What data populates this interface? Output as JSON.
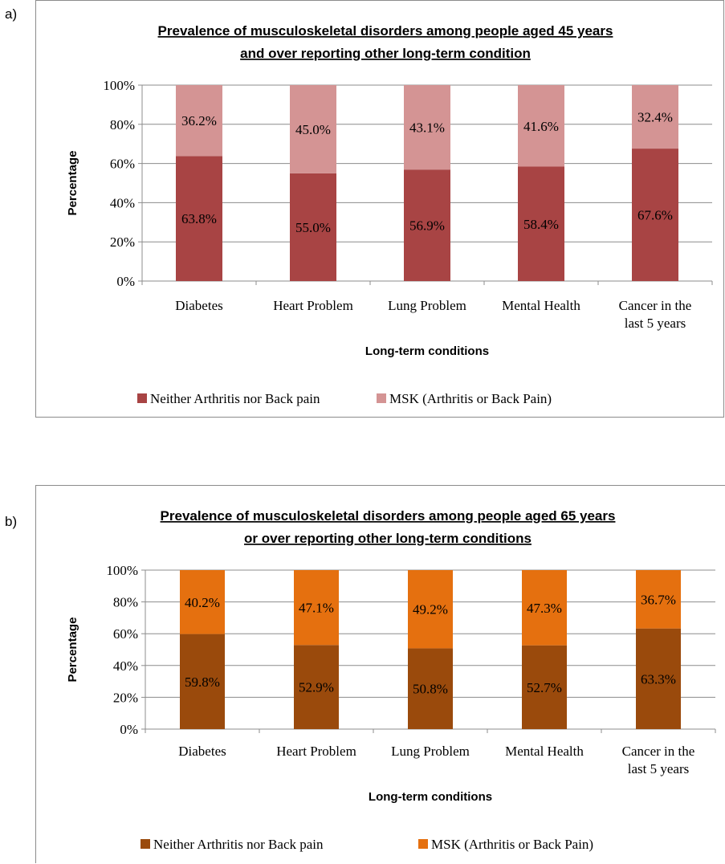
{
  "panel_labels": [
    "a)",
    "b)"
  ],
  "chart_data": [
    {
      "type": "bar",
      "stacked": true,
      "title_line1": "Prevalence of musculoskeletal disorders among people aged 45 years",
      "title_line2": "and over reporting other long-term condition",
      "xlabel": "Long-term conditions",
      "ylabel": "Percentage",
      "ylim": [
        0,
        100
      ],
      "yticks": [
        "0%",
        "20%",
        "40%",
        "60%",
        "80%",
        "100%"
      ],
      "categories": [
        [
          "Diabetes"
        ],
        [
          "Heart Problem"
        ],
        [
          "Lung Problem"
        ],
        [
          "Mental Health"
        ],
        [
          "Cancer in the",
          "last 5 years"
        ]
      ],
      "grid": true,
      "legend_position": "bottom",
      "series": [
        {
          "name": "Neither Arthritis nor Back pain",
          "color": "#a84444",
          "values": [
            63.8,
            55.0,
            56.9,
            58.4,
            67.6
          ],
          "labels": [
            "63.8%",
            "55.0%",
            "56.9%",
            "58.4%",
            "67.6%"
          ]
        },
        {
          "name": "MSK (Arthritis or Back Pain)",
          "color": "#d49494",
          "values": [
            36.2,
            45.0,
            43.1,
            41.6,
            32.4
          ],
          "labels": [
            "36.2%",
            "45.0%",
            "43.1%",
            "41.6%",
            "32.4%"
          ]
        }
      ]
    },
    {
      "type": "bar",
      "stacked": true,
      "title_line1": "Prevalence of musculoskeletal disorders among people aged 65 years",
      "title_line2": "or over reporting other long-term conditions",
      "xlabel": "Long-term conditions",
      "ylabel": "Percentage",
      "ylim": [
        0,
        100
      ],
      "yticks": [
        "0%",
        "20%",
        "40%",
        "60%",
        "80%",
        "100%"
      ],
      "categories": [
        [
          "Diabetes"
        ],
        [
          "Heart Problem"
        ],
        [
          "Lung Problem"
        ],
        [
          "Mental Health"
        ],
        [
          "Cancer in the",
          "last 5 years"
        ]
      ],
      "grid": true,
      "legend_position": "bottom",
      "series": [
        {
          "name": "Neither Arthritis nor Back pain",
          "color": "#9a4a0c",
          "values": [
            59.8,
            52.9,
            50.8,
            52.7,
            63.3
          ],
          "labels": [
            "59.8%",
            "52.9%",
            "50.8%",
            "52.7%",
            "63.3%"
          ]
        },
        {
          "name": "MSK (Arthritis or Back Pain)",
          "color": "#e5700f",
          "values": [
            40.2,
            47.1,
            49.2,
            47.3,
            36.7
          ],
          "labels": [
            "40.2%",
            "47.1%",
            "49.2%",
            "47.3%",
            "36.7%"
          ]
        }
      ]
    }
  ]
}
